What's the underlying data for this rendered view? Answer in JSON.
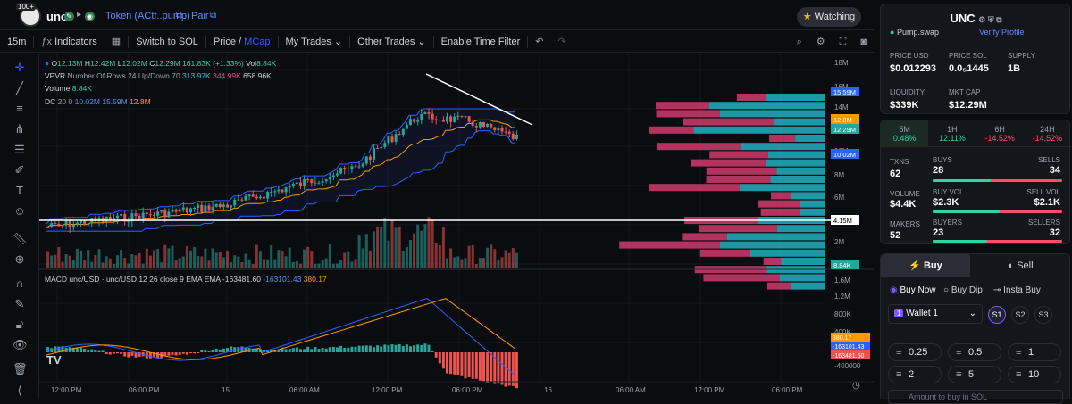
{
  "header": {
    "badge": "100+",
    "app_name": "unc",
    "token_link": "Token (ACtf..pump)",
    "pair_link": "Pair",
    "watching": "Watching"
  },
  "toolbar": {
    "interval": "15m",
    "indicators": "Indicators",
    "switch": "Switch to SOL",
    "price": "Price",
    "sep": "/",
    "mcap": "MCap",
    "my_trades": "My Trades",
    "other_trades": "Other Trades",
    "time_filter": "Enable Time Filter"
  },
  "legend": {
    "ohlc": {
      "o_label": "O",
      "o": "12.13M",
      "h_label": "H",
      "h": "12.42M",
      "l_label": "L",
      "l": "12.02M",
      "c_label": "C",
      "c": "12.29M",
      "chg": "161.83K (+1.33%)",
      "vol_label": "Vol",
      "vol": "8.84K"
    },
    "vpvr": {
      "label": "VPVR",
      "desc": "Number Of Rows 24 Up/Down 70",
      "v1": "313.97K",
      "v2": "344.99K",
      "v3": "658.96K"
    },
    "volume": {
      "label": "Volume",
      "val": "8.84K"
    },
    "dc": {
      "label": "DC",
      "n": "20",
      "off": "0",
      "v1": "10.02M",
      "v2": "15.59M",
      "v3": "12.8M"
    },
    "macd": {
      "label": "MACD unc/USD · unc/USD 12 26 close 9 EMA EMA",
      "v1": "-163481.60",
      "v2": "-163101.43",
      "v3": "380.17"
    }
  },
  "price_axis": {
    "ticks": [
      "18M",
      "16M",
      "14M",
      "10M",
      "8M",
      "6M",
      "4M",
      "2M"
    ],
    "tags": {
      "upper": "15.59M",
      "mid": "12.8M",
      "close": "12.29M",
      "lower": "10.02M",
      "level": "4.15M",
      "vol": "8.84K"
    }
  },
  "macd_axis": {
    "ticks": [
      "1.6M",
      "1.2M",
      "800K",
      "400K",
      "-400000"
    ],
    "tags": {
      "signal": "380.17",
      "macd": "-163101.43",
      "hist": "-163481.60"
    }
  },
  "time_axis": {
    "ticks": [
      "12:00 PM",
      "06:00 PM",
      "15",
      "06:00 AM",
      "12:00 PM",
      "06:00 PM",
      "16",
      "06:00 AM",
      "12:00 PM",
      "06:00 PM"
    ]
  },
  "token": {
    "symbol": "UNC",
    "dex": "Pump.swap",
    "verify": "Verify Profile",
    "price_usd_label": "PRICE USD",
    "price_usd": "$0.012293",
    "price_sol_label": "PRICE SOL",
    "price_sol": "0.0₅1445",
    "supply_label": "SUPPLY",
    "supply": "1B",
    "liq_label": "LIQUIDITY",
    "liq": "$339K",
    "mcap_label": "MKT CAP",
    "mcap": "$12.29M"
  },
  "changes": [
    {
      "tf": "5M",
      "val": "0.48%"
    },
    {
      "tf": "1H",
      "val": "12.11%"
    },
    {
      "tf": "6H",
      "val": "-14.52%"
    },
    {
      "tf": "24H",
      "val": "-14.52%"
    }
  ],
  "txn": {
    "txns_label": "TXNS",
    "txns": "62",
    "buys_label": "BUYS",
    "buys": "28",
    "sells_label": "SELLS",
    "sells": "34",
    "vol_label": "VOLUME",
    "vol": "$4.4K",
    "buyvol_label": "BUY VOL",
    "buyvol": "$2.3K",
    "sellvol_label": "SELL VOL",
    "sellvol": "$2.1K",
    "makers_label": "MAKERS",
    "makers": "52",
    "buyers_label": "BUYERS",
    "buyers": "23",
    "sellers_label": "SELLERS",
    "sellers": "32"
  },
  "trade": {
    "buy": "Buy",
    "sell": "Sell",
    "buy_now": "Buy Now",
    "buy_dip": "Buy Dip",
    "insta": "Insta Buy",
    "wallet": "Wallet 1",
    "badge": "1",
    "s1": "S1",
    "s2": "S2",
    "s3": "S3",
    "amounts": [
      "0.25",
      "0.5",
      "1",
      "2",
      "5",
      "10"
    ],
    "placeholder": "Amount to buy in SOL"
  },
  "colors": {
    "up": "#26a69a",
    "down": "#ef5350",
    "dc": "#2962ff",
    "accent": "#2fd49e"
  }
}
